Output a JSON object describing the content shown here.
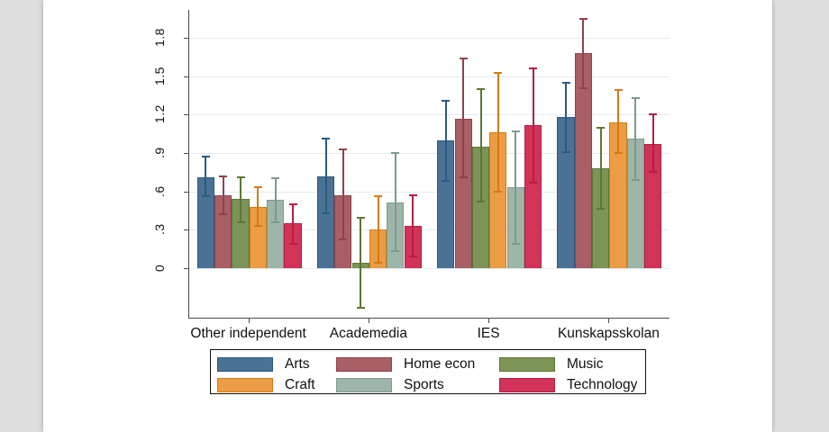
{
  "window": {
    "background_color": "#dfdfdf",
    "page_color": "#ffffff"
  },
  "chart_data": {
    "type": "bar",
    "title": "",
    "xlabel": "",
    "ylabel": "",
    "categories": [
      "Other independent",
      "Academedia",
      "IES",
      "Kunskapsskolan"
    ],
    "series": [
      {
        "name": "Arts",
        "color": "#4a7294",
        "edge_color": "#2b5a7e",
        "values": [
          0.71,
          0.72,
          1.0,
          1.18
        ],
        "ci_low": [
          0.56,
          0.43,
          0.68,
          0.91
        ],
        "ci_high": [
          0.87,
          1.01,
          1.31,
          1.45
        ]
      },
      {
        "name": "Home econ",
        "color": "#a85f66",
        "edge_color": "#8e434c",
        "values": [
          0.57,
          0.57,
          1.17,
          1.68
        ],
        "ci_low": [
          0.42,
          0.22,
          0.71,
          1.41
        ],
        "ci_high": [
          0.72,
          0.93,
          1.64,
          1.95
        ]
      },
      {
        "name": "Music",
        "color": "#7d9457",
        "edge_color": "#5d7636",
        "values": [
          0.54,
          0.04,
          0.95,
          0.78
        ],
        "ci_low": [
          0.36,
          -0.31,
          0.52,
          0.46
        ],
        "ci_high": [
          0.71,
          0.39,
          1.4,
          1.1
        ]
      },
      {
        "name": "Craft",
        "color": "#eb9c44",
        "edge_color": "#d27c17",
        "values": [
          0.48,
          0.3,
          1.06,
          1.14
        ],
        "ci_low": [
          0.33,
          0.04,
          0.6,
          0.9
        ],
        "ci_high": [
          0.63,
          0.56,
          1.53,
          1.39
        ]
      },
      {
        "name": "Sports",
        "color": "#9eb5a9",
        "edge_color": "#7d9a8c",
        "values": [
          0.53,
          0.51,
          0.63,
          1.01
        ],
        "ci_low": [
          0.36,
          0.13,
          0.19,
          0.69
        ],
        "ci_high": [
          0.7,
          0.9,
          1.07,
          1.33
        ]
      },
      {
        "name": "Technology",
        "color": "#d23359",
        "edge_color": "#b31f45",
        "values": [
          0.35,
          0.33,
          1.12,
          0.97
        ],
        "ci_low": [
          0.19,
          0.09,
          0.67,
          0.75
        ],
        "ci_high": [
          0.5,
          0.57,
          1.56,
          1.2
        ]
      }
    ],
    "y_axis": {
      "tick_values": [
        0,
        0.3,
        0.6,
        0.9,
        1.2,
        1.5,
        1.8
      ],
      "tick_labels": [
        "0",
        ".3",
        ".6",
        ".9",
        "1.2",
        "1.5",
        "1.8"
      ],
      "range": [
        -0.39,
        2.02
      ]
    },
    "grid": "horizontal",
    "gridline_color": "#e2ecf5",
    "axis_color": "#4a4a4a",
    "text_color": "#111111",
    "legend": {
      "position": "bottom-center",
      "rows": 2,
      "columns": 3,
      "border_color": "#111111"
    }
  }
}
